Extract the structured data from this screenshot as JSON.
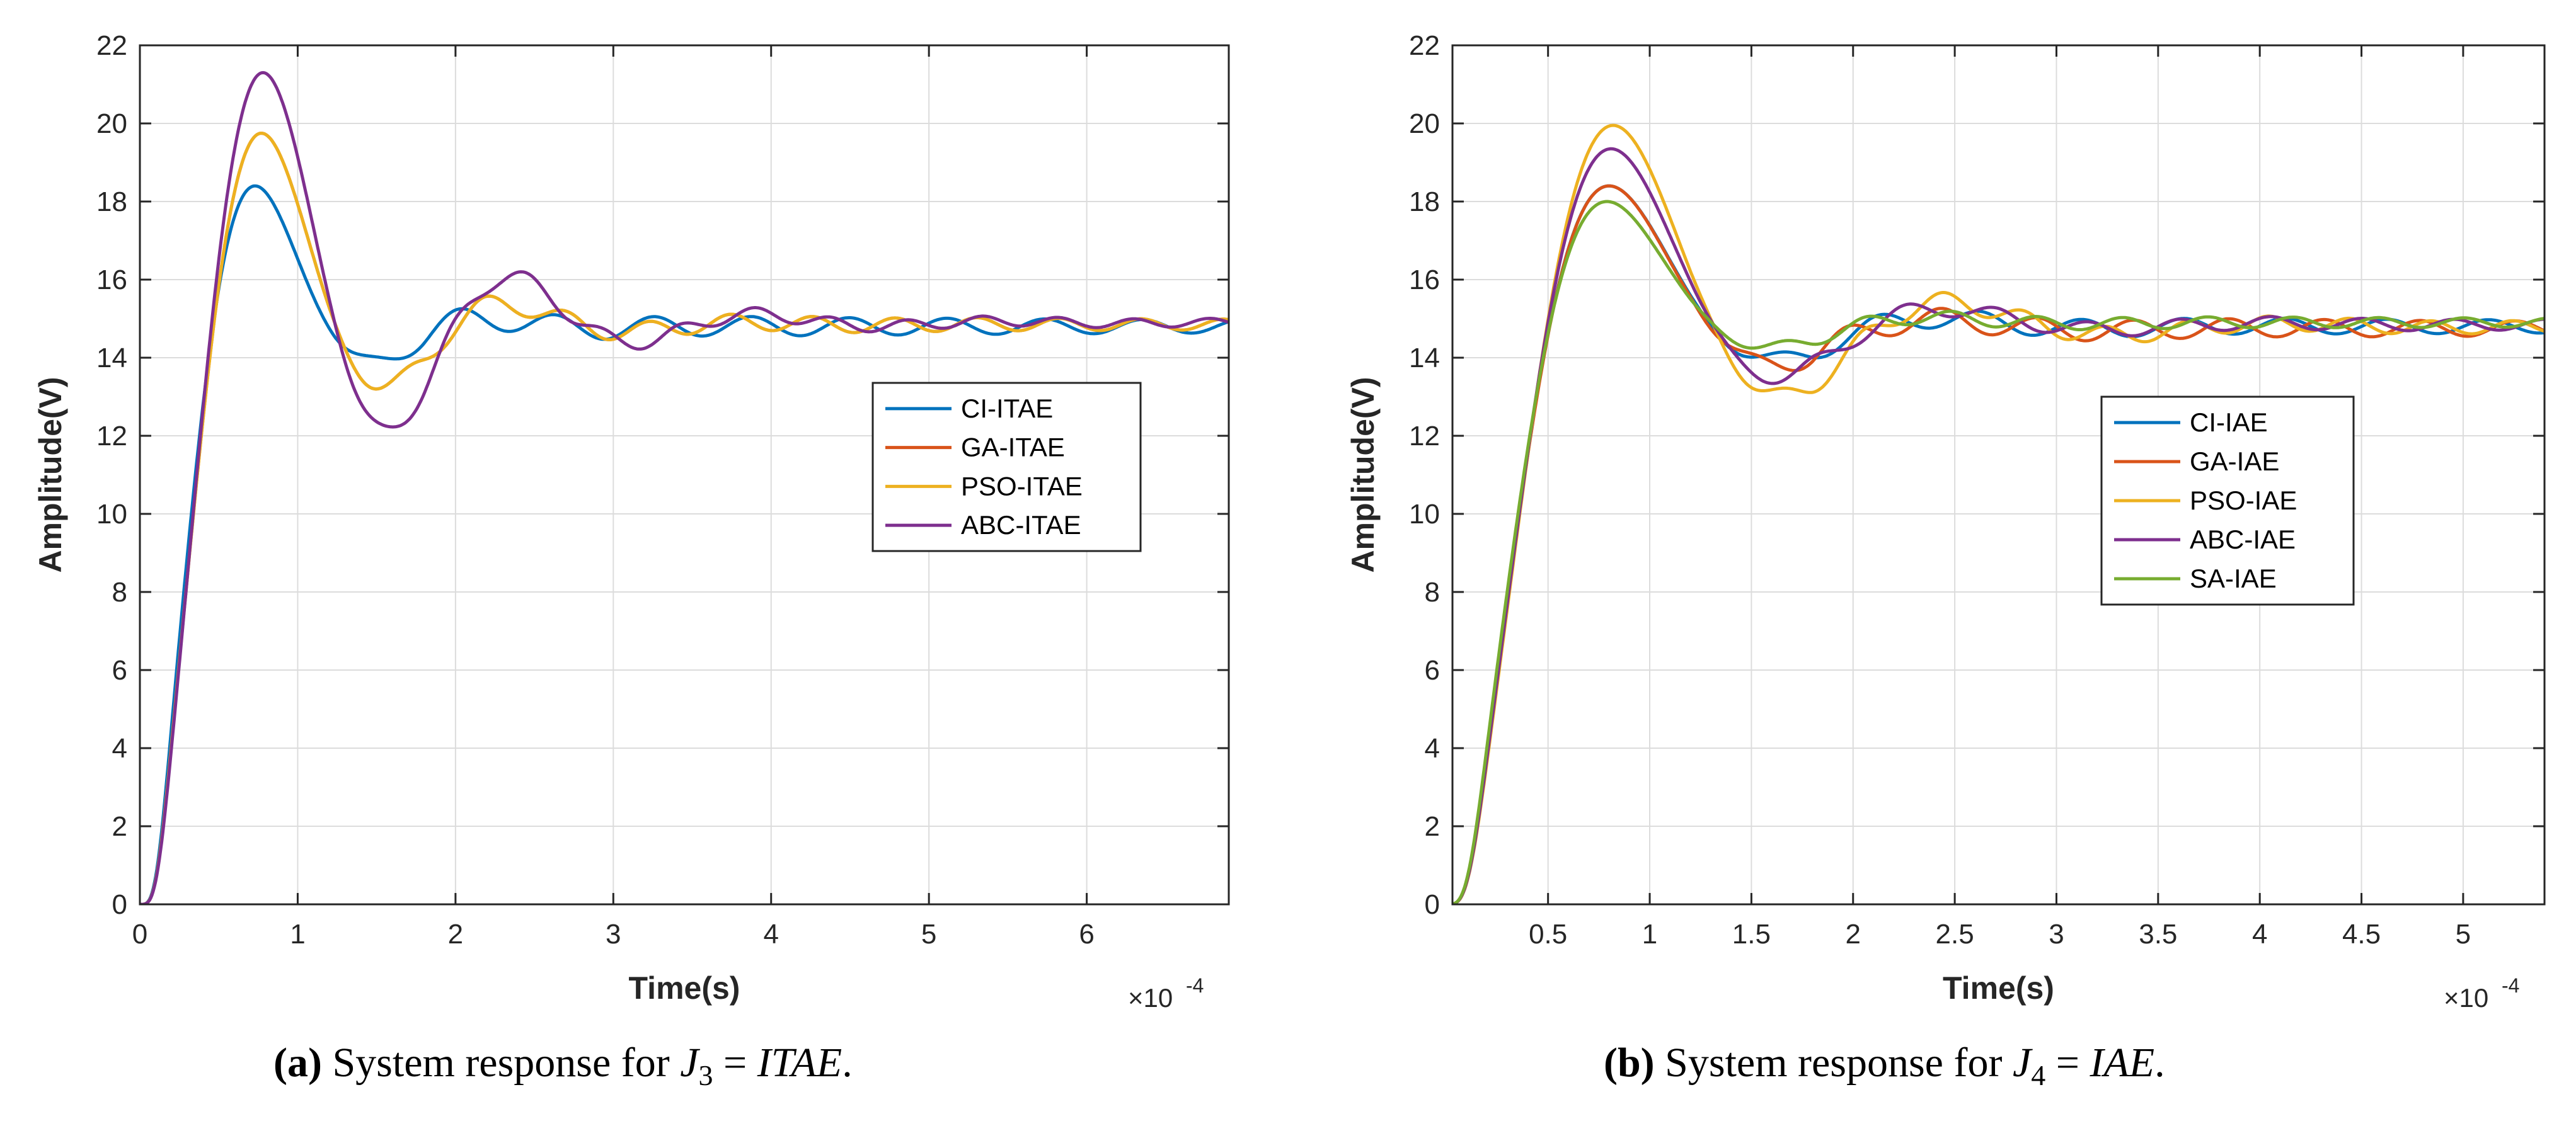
{
  "colors": {
    "grid": "#dcdcdc",
    "axis": "#262626",
    "series": [
      "#0072BD",
      "#D95319",
      "#EDB120",
      "#7E2F8E",
      "#77AC30"
    ]
  },
  "chart_data": [
    {
      "type": "line",
      "xlabel": "Time(s)",
      "ylabel": "Amplitude(V)",
      "x_exponent": "×10",
      "x_exponent_power": "-4",
      "xlim": [
        0,
        6.9
      ],
      "ylim": [
        0,
        22
      ],
      "xticks": [
        0,
        1,
        2,
        3,
        4,
        5,
        6
      ],
      "xtick_labels": [
        "0",
        "1",
        "2",
        "3",
        "4",
        "5",
        "6"
      ],
      "yticks": [
        0,
        2,
        4,
        6,
        8,
        10,
        12,
        14,
        16,
        18,
        20,
        22
      ],
      "ytick_labels": [
        "0",
        "2",
        "4",
        "6",
        "8",
        "10",
        "12",
        "14",
        "16",
        "18",
        "20",
        "22"
      ],
      "grid": true,
      "legend_position": "center-right",
      "caption_label": "(a)",
      "caption_text": " System response for ",
      "caption_math_var": "J",
      "caption_math_sub": "3",
      "caption_math_eq": " = ",
      "caption_math_rhs": "ITAE",
      "caption_end": ".",
      "series": [
        {
          "name": "CI-ITAE",
          "color_index": 0,
          "final": 14.8,
          "peak": 18.4,
          "tpeak": 0.73,
          "osc_amp": 0.35,
          "osc_period": 0.62,
          "decay": 1.9,
          "phase": 0.0
        },
        {
          "name": "GA-ITAE",
          "color_index": 1,
          "final": 14.85,
          "peak": 19.75,
          "tpeak": 0.77,
          "osc_amp": 0.3,
          "osc_period": 0.52,
          "decay": 1.8,
          "phase": 0.3
        },
        {
          "name": "PSO-ITAE",
          "color_index": 2,
          "final": 14.85,
          "peak": 19.75,
          "tpeak": 0.77,
          "osc_amp": 0.3,
          "osc_period": 0.52,
          "decay": 1.8,
          "phase": 0.3
        },
        {
          "name": "ABC-ITAE",
          "color_index": 3,
          "final": 14.9,
          "peak": 21.3,
          "tpeak": 0.78,
          "osc_amp": 0.25,
          "osc_period": 0.48,
          "decay": 1.6,
          "phase": 0.8
        }
      ]
    },
    {
      "type": "line",
      "xlabel": "Time(s)",
      "ylabel": "Amplitude(V)",
      "x_exponent": "×10",
      "x_exponent_power": "-4",
      "xlim": [
        0.03,
        5.4
      ],
      "ylim": [
        0,
        22
      ],
      "xticks": [
        0.5,
        1,
        1.5,
        2,
        2.5,
        3,
        3.5,
        4,
        4.5,
        5
      ],
      "xtick_labels": [
        "0.5",
        "1",
        "1.5",
        "2",
        "2.5",
        "3",
        "3.5",
        "4",
        "4.5",
        "5"
      ],
      "yticks": [
        0,
        2,
        4,
        6,
        8,
        10,
        12,
        14,
        16,
        18,
        20,
        22
      ],
      "ytick_labels": [
        "0",
        "2",
        "4",
        "6",
        "8",
        "10",
        "12",
        "14",
        "16",
        "18",
        "20",
        "22"
      ],
      "grid": true,
      "legend_position": "center-right",
      "caption_label": "(b)",
      "caption_text": " System response for ",
      "caption_math_var": "J",
      "caption_math_sub": "4",
      "caption_math_eq": " = ",
      "caption_math_rhs": "IAE",
      "caption_end": ".",
      "series": [
        {
          "name": "CI-IAE",
          "color_index": 0,
          "final": 14.8,
          "peak": 18.4,
          "tpeak": 0.8,
          "osc_amp": 0.3,
          "osc_period": 0.5,
          "decay": 1.8,
          "phase": 0.0
        },
        {
          "name": "GA-IAE",
          "color_index": 1,
          "final": 14.75,
          "peak": 18.4,
          "tpeak": 0.8,
          "osc_amp": 0.35,
          "osc_period": 0.47,
          "decay": 1.7,
          "phase": 0.4
        },
        {
          "name": "PSO-IAE",
          "color_index": 2,
          "final": 14.8,
          "peak": 19.95,
          "tpeak": 0.82,
          "osc_amp": 0.3,
          "osc_period": 0.4,
          "decay": 1.6,
          "phase": 0.9
        },
        {
          "name": "ABC-IAE",
          "color_index": 3,
          "final": 14.85,
          "peak": 19.35,
          "tpeak": 0.81,
          "osc_amp": 0.25,
          "osc_period": 0.45,
          "decay": 1.7,
          "phase": 1.5
        },
        {
          "name": "SA-IAE",
          "color_index": 4,
          "final": 14.9,
          "peak": 18.0,
          "tpeak": 0.79,
          "osc_amp": 0.2,
          "osc_period": 0.42,
          "decay": 1.9,
          "phase": 2.1
        }
      ]
    }
  ]
}
